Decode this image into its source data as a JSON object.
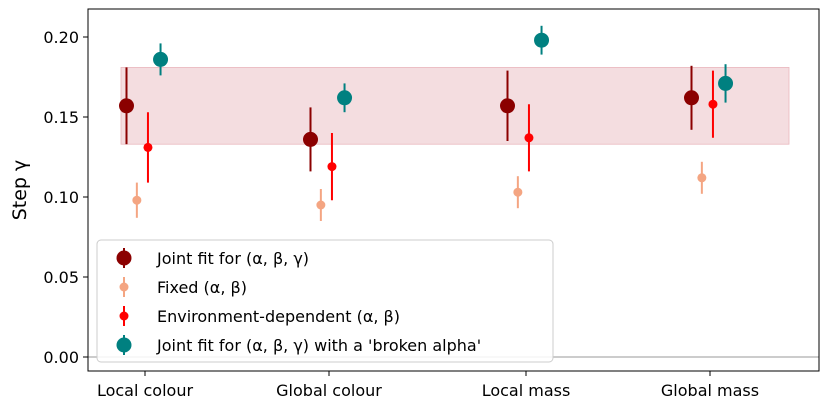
{
  "chart_data": {
    "type": "scatter",
    "title": "",
    "xlabel": "",
    "ylabel": "Step γ",
    "ylim": [
      -0.01,
      0.218
    ],
    "yticks": [
      0.0,
      0.05,
      0.1,
      0.15,
      0.2
    ],
    "ytick_labels": [
      "0.00",
      "0.05",
      "0.10",
      "0.15",
      "0.20"
    ],
    "categories": [
      "Local colour",
      "Global colour",
      "Local mass",
      "Global mass"
    ],
    "band": {
      "low": 0.133,
      "high": 0.181,
      "color": "#f4dde0"
    },
    "baseline": 0.0,
    "grid": false,
    "legend_position": "lower-left",
    "series": [
      {
        "name": "Joint fit for (α, β, γ)",
        "color": "#8b0000",
        "marker": "large",
        "offset": -0.25,
        "values": [
          0.157,
          0.136,
          0.157,
          0.162
        ],
        "errors": [
          0.024,
          0.02,
          0.022,
          0.02
        ]
      },
      {
        "name": "Fixed (α, β)",
        "color": "#f4a582",
        "marker": "small",
        "offset": -0.11,
        "values": [
          0.098,
          0.095,
          0.103,
          0.112
        ],
        "errors": [
          0.011,
          0.01,
          0.01,
          0.01
        ]
      },
      {
        "name": "Environment-dependent (α, β)",
        "color": "#ff0000",
        "marker": "small",
        "offset": 0.04,
        "values": [
          0.131,
          0.119,
          0.137,
          0.158
        ],
        "errors": [
          0.022,
          0.021,
          0.021,
          0.021
        ]
      },
      {
        "name": "Joint fit for (α, β, γ) with a 'broken alpha'",
        "color": "#008080",
        "marker": "large",
        "offset": 0.21,
        "values": [
          0.186,
          0.162,
          0.198,
          0.171
        ],
        "errors": [
          0.01,
          0.009,
          0.009,
          0.012
        ]
      }
    ]
  }
}
